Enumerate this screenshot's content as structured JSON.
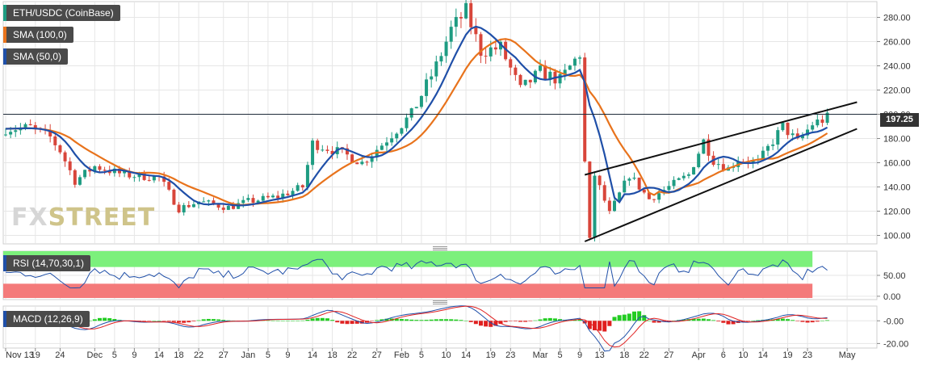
{
  "legends": {
    "symbol": {
      "label": "ETH/USDC (CoinBase)",
      "color": "#1e9c82"
    },
    "sma100": {
      "label": "SMA (100,0)",
      "color": "#e8731c"
    },
    "sma50": {
      "label": "SMA (50,0)",
      "color": "#1f4fa8"
    },
    "rsi": {
      "label": "RSI (14,70,30,1)",
      "color": "#1f4fa8"
    },
    "macd": {
      "label": "MACD (12,26,9)",
      "color": "#1f4fa8"
    }
  },
  "watermark": {
    "part1": "FX",
    "part2": "STREET"
  },
  "price_badge": "197.25",
  "chart_data": [
    {
      "panel": "price",
      "type": "candlestick",
      "title": "ETH/USDC (CoinBase)",
      "ylim": [
        93,
        293
      ],
      "y_ticks": [
        "100.00",
        "120.00",
        "140.00",
        "160.00",
        "180.00",
        "200.00",
        "220.00",
        "240.00",
        "260.00",
        "280.00"
      ],
      "y_tick_values": [
        100,
        120,
        140,
        160,
        180,
        200,
        220,
        240,
        260,
        280
      ],
      "x_ticks": [
        "Nov 13",
        "19",
        "24",
        "Dec",
        "5",
        "9",
        "14",
        "18",
        "22",
        "27",
        "Jan",
        "5",
        "9",
        "14",
        "18",
        "22",
        "27",
        "Feb",
        "5",
        "10",
        "14",
        "19",
        "23",
        "Mar",
        "5",
        "9",
        "13",
        "18",
        "22",
        "27",
        "Apr",
        "6",
        "10",
        "14",
        "19",
        "23",
        "May"
      ],
      "x_tick_days": [
        0,
        6,
        11,
        18,
        22,
        26,
        31,
        35,
        39,
        44,
        49,
        53,
        57,
        62,
        66,
        70,
        75,
        80,
        84,
        89,
        93,
        98,
        102,
        108,
        112,
        116,
        120,
        125,
        129,
        134,
        140,
        145,
        149,
        153,
        158,
        162,
        170
      ],
      "last_price": 197.25,
      "close_keypoints_day": [
        0,
        5,
        9,
        11,
        14,
        18,
        24,
        31,
        35,
        39,
        45,
        49,
        55,
        60,
        62,
        68,
        72,
        76,
        82,
        87,
        90,
        93,
        96,
        100,
        104,
        108,
        112,
        116,
        117,
        118,
        119,
        122,
        126,
        130,
        134,
        138,
        141,
        143,
        146,
        148,
        152,
        157,
        160,
        163,
        166
      ],
      "close_keypoints_value": [
        188,
        189,
        181,
        170,
        145,
        157,
        150,
        148,
        122,
        128,
        123,
        128,
        132,
        140,
        176,
        168,
        160,
        175,
        200,
        240,
        270,
        285,
        252,
        255,
        220,
        235,
        228,
        250,
        160,
        96,
        150,
        118,
        150,
        130,
        140,
        150,
        178,
        162,
        155,
        163,
        160,
        190,
        177,
        192,
        197
      ],
      "series": [
        {
          "name": "SMA (100,0)",
          "color": "#e8731c"
        },
        {
          "name": "SMA (50,0)",
          "color": "#1f4fa8"
        }
      ],
      "trendlines": [
        {
          "from": [
            117,
            150
          ],
          "to": [
            172,
            210
          ]
        },
        {
          "from": [
            117,
            95
          ],
          "to": [
            172,
            188
          ]
        }
      ],
      "horizontal_line": 200
    },
    {
      "panel": "rsi",
      "type": "line",
      "title": "RSI (14,70,30,1)",
      "ylim": [
        -8,
        108
      ],
      "y_ticks": [
        "0.00",
        "50.00"
      ],
      "y_tick_values": [
        0,
        50
      ],
      "overbought": 70,
      "oversold": 30,
      "zone_colors": {
        "upper": "#7cf07c",
        "lower": "#f47a7a"
      }
    },
    {
      "panel": "macd",
      "type": "line",
      "title": "MACD (12,26,9)",
      "ylim": [
        -24,
        13
      ],
      "y_ticks": [
        "-0.00",
        "-20.00"
      ],
      "y_tick_values": [
        0,
        -20
      ],
      "histogram_colors": {
        "positive": "#22cc22",
        "negative": "#e02020"
      }
    }
  ]
}
